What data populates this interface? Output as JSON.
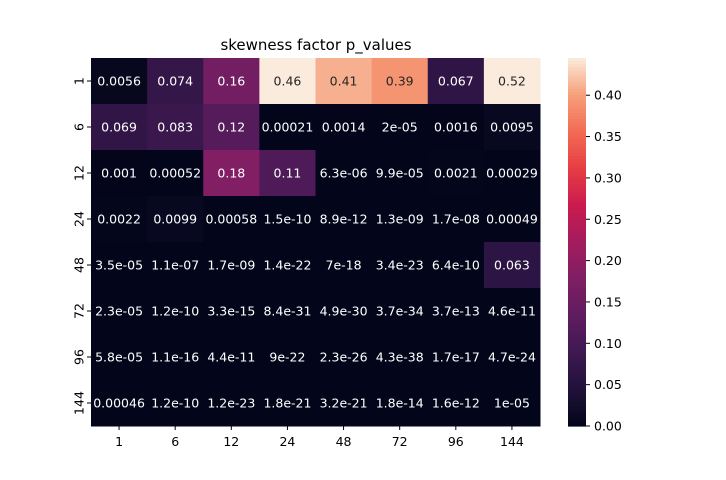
{
  "chart_data": {
    "type": "heatmap",
    "title": "skewness factor p_values",
    "x_categories": [
      "1",
      "6",
      "12",
      "24",
      "48",
      "72",
      "96",
      "144"
    ],
    "y_categories": [
      "1",
      "6",
      "12",
      "24",
      "48",
      "72",
      "96",
      "144"
    ],
    "values": [
      [
        0.0056,
        0.074,
        0.16,
        0.46,
        0.41,
        0.39,
        0.067,
        0.52
      ],
      [
        0.069,
        0.083,
        0.12,
        0.00021,
        0.0014,
        2e-05,
        0.0016,
        0.0095
      ],
      [
        0.001,
        0.00052,
        0.18,
        0.11,
        6.3e-06,
        9.9e-05,
        0.0021,
        0.00029
      ],
      [
        0.0022,
        0.0099,
        0.00058,
        1.5e-10,
        8.9e-12,
        1.3e-09,
        1.7e-08,
        0.00049
      ],
      [
        3.5e-05,
        1.1e-07,
        1.7e-09,
        1.4e-22,
        7e-18,
        3.4e-23,
        6.4e-10,
        0.063
      ],
      [
        2.3e-05,
        1.2e-10,
        3.3e-15,
        8.4e-31,
        4.9e-30,
        3.7e-34,
        3.7e-13,
        4.6e-11
      ],
      [
        5.8e-05,
        1.1e-16,
        4.4e-11,
        9e-22,
        2.3e-26,
        4.3e-38,
        1.7e-17,
        4.7e-24
      ],
      [
        0.00046,
        1.2e-10,
        1.2e-23,
        1.8e-21,
        3.2e-21,
        1.8e-14,
        1.6e-12,
        1e-05
      ]
    ],
    "labels": [
      [
        "0.0056",
        "0.074",
        "0.16",
        "0.46",
        "0.41",
        "0.39",
        "0.067",
        "0.52"
      ],
      [
        "0.069",
        "0.083",
        "0.12",
        "0.00021",
        "0.0014",
        "2e-05",
        "0.0016",
        "0.0095"
      ],
      [
        "0.001",
        "0.00052",
        "0.18",
        "0.11",
        "6.3e-06",
        "9.9e-05",
        "0.0021",
        "0.00029"
      ],
      [
        "0.0022",
        "0.0099",
        "0.00058",
        "1.5e-10",
        "8.9e-12",
        "1.3e-09",
        "1.7e-08",
        "0.00049"
      ],
      [
        "3.5e-05",
        "1.1e-07",
        "1.7e-09",
        "1.4e-22",
        "7e-18",
        "3.4e-23",
        "6.4e-10",
        "0.063"
      ],
      [
        "2.3e-05",
        "1.2e-10",
        "3.3e-15",
        "8.4e-31",
        "4.9e-30",
        "3.7e-34",
        "3.7e-13",
        "4.6e-11"
      ],
      [
        "5.8e-05",
        "1.1e-16",
        "4.4e-11",
        "9e-22",
        "2.3e-26",
        "4.3e-38",
        "1.7e-17",
        "4.7e-24"
      ],
      [
        "0.00046",
        "1.2e-10",
        "1.2e-23",
        "1.8e-21",
        "3.2e-21",
        "1.8e-14",
        "1.6e-12",
        "1e-05"
      ]
    ],
    "colorbar": {
      "min": 0,
      "max": 0.445,
      "ticks": [
        0.0,
        0.05,
        0.1,
        0.15,
        0.2,
        0.25,
        0.3,
        0.35,
        0.4
      ],
      "tick_labels": [
        "0.00",
        "0.05",
        "0.10",
        "0.15",
        "0.20",
        "0.25",
        "0.30",
        "0.35",
        "0.40"
      ],
      "colormap": "rocket"
    },
    "xlabel": "",
    "ylabel": "",
    "grid": false
  }
}
